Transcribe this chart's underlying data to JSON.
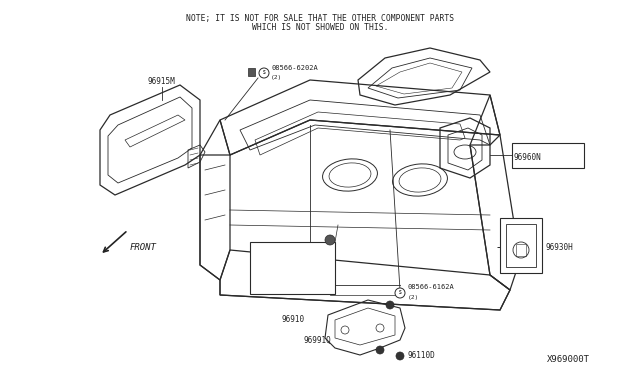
{
  "bg_color": "#ffffff",
  "note_line1": "NOTE; IT IS NOT FOR SALE THAT THE OTHER COMPONENT PARTS",
  "note_line2": "WHICH IS NOT SHOWED ON THIS.",
  "diagram_id": "X969000T",
  "line_color": "#2a2a2a",
  "text_color": "#222222",
  "note_fontsize": 5.8,
  "label_fontsize": 5.5,
  "diagram_id_fontsize": 6.5,
  "front_label": "FRONT"
}
